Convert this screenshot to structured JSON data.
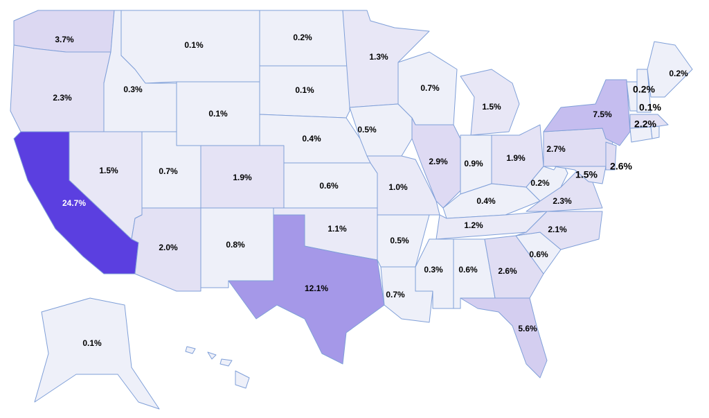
{
  "regions": [
    {
      "label": "3.7%",
      "color": "#dcd8f2"
    },
    {
      "label": "2.3%",
      "color": "#e3e1f4"
    },
    {
      "label": "24.7%",
      "color": "#5b3fe0"
    },
    {
      "label": "0.3%",
      "color": "#eef0f9"
    },
    {
      "label": "1.5%",
      "color": "#e8e7f6"
    },
    {
      "label": "0.1%",
      "color": "#eef0f9"
    },
    {
      "label": "0.1%",
      "color": "#eef0f9"
    },
    {
      "label": "0.7%",
      "color": "#eef0f9"
    },
    {
      "label": "2.0%",
      "color": "#e3e1f4"
    },
    {
      "label": "1.9%",
      "color": "#e5e3f5"
    },
    {
      "label": "0.8%",
      "color": "#eef0f9"
    },
    {
      "label": "0.2%",
      "color": "#eef0f9"
    },
    {
      "label": "0.1%",
      "color": "#eef0f9"
    },
    {
      "label": "0.4%",
      "color": "#eef0f9"
    },
    {
      "label": "0.6%",
      "color": "#eef0f9"
    },
    {
      "label": "1.1%",
      "color": "#eaeaf7"
    },
    {
      "label": "12.1%",
      "color": "#a598e8"
    },
    {
      "label": "1.3%",
      "color": "#e8e7f6"
    },
    {
      "label": "0.5%",
      "color": "#eef0f9"
    },
    {
      "label": "1.0%",
      "color": "#eaeaf7"
    },
    {
      "label": "0.5%",
      "color": "#eef0f9"
    },
    {
      "label": "0.7%",
      "color": "#eef0f9"
    },
    {
      "label": "0.7%",
      "color": "#eef0f9"
    },
    {
      "label": "2.9%",
      "color": "#dedaf3"
    },
    {
      "label": "1.5%",
      "color": "#e8e7f6"
    },
    {
      "label": "0.9%",
      "color": "#eef0f9"
    },
    {
      "label": "1.9%",
      "color": "#e5e3f5"
    },
    {
      "label": "0.4%",
      "color": "#eef0f9"
    },
    {
      "label": "1.2%",
      "color": "#eaeaf7"
    },
    {
      "label": "0.3%",
      "color": "#eef0f9"
    },
    {
      "label": "0.6%",
      "color": "#eef0f9"
    },
    {
      "label": "2.6%",
      "color": "#e0ddf3"
    },
    {
      "label": "5.6%",
      "color": "#d4cef0"
    },
    {
      "label": "0.6%",
      "color": "#eef0f9"
    },
    {
      "label": "2.1%",
      "color": "#e3e1f4"
    },
    {
      "label": "2.3%",
      "color": "#e3e1f4"
    },
    {
      "label": "0.2%",
      "color": "#eef0f9"
    },
    {
      "label": "2.7%",
      "color": "#e0ddf3"
    },
    {
      "label": "1.5%",
      "color": "#e8e7f6"
    },
    {
      "label": "2.6%",
      "color": "#e0ddf3"
    },
    {
      "label": "7.5%",
      "color": "#c5bdef"
    },
    {
      "label": "0.2%",
      "color": "#eef0f9"
    },
    {
      "label": "0.1%",
      "color": "#eef0f9"
    },
    {
      "label": "0.2%",
      "color": "#eef0f9"
    },
    {
      "label": "2.2%",
      "color": "#e3e1f4"
    },
    {
      "label": "0.1%",
      "color": "#eef0f9"
    }
  ]
}
